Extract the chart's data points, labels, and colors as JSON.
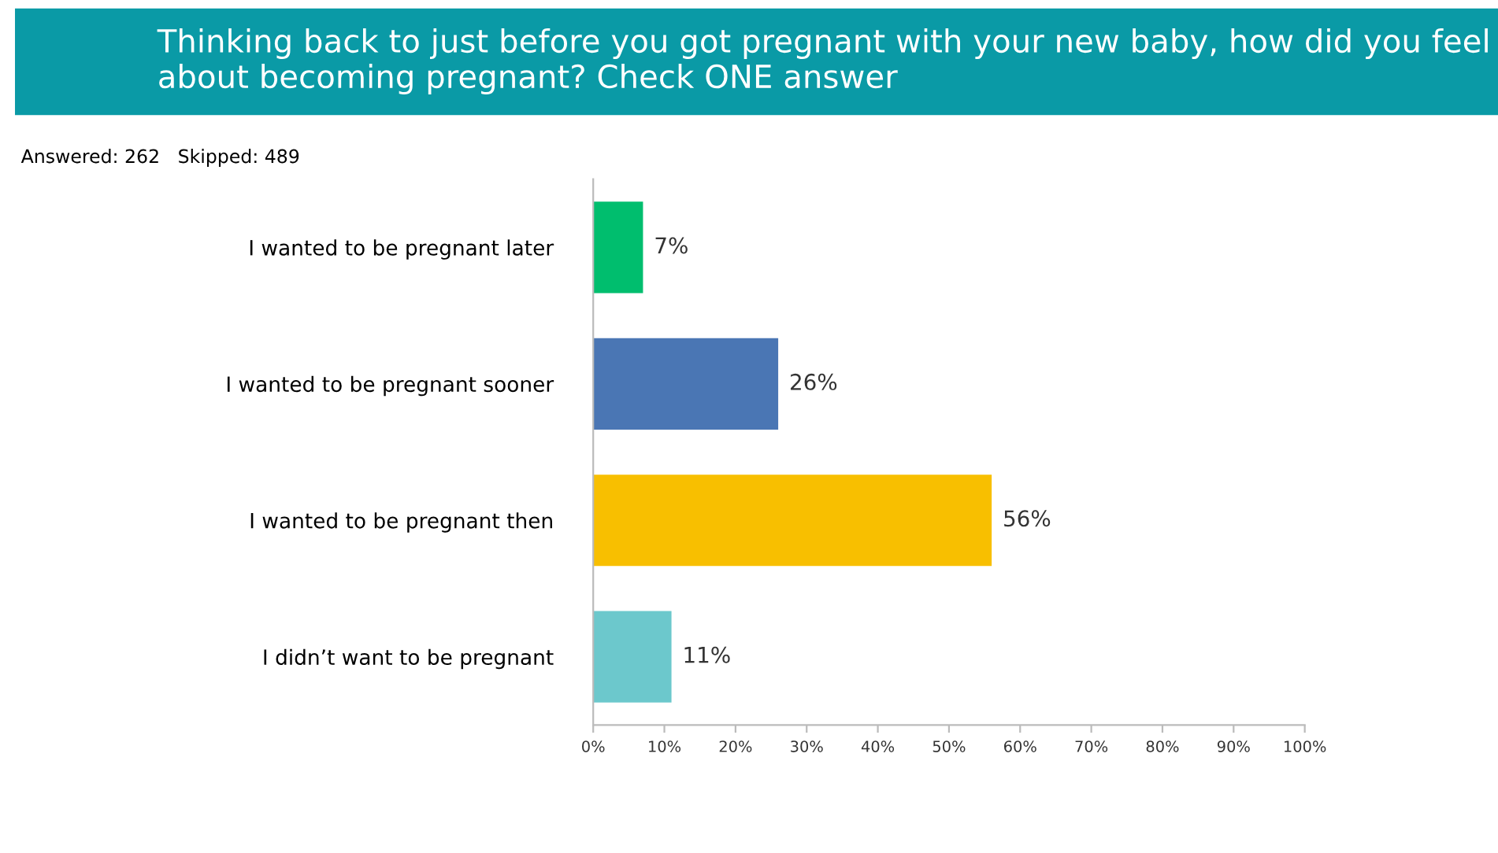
{
  "chart_data": {
    "type": "bar",
    "orientation": "horizontal",
    "title": "Thinking back to just before you got pregnant with your new baby, how did you feel about becoming pregnant? Check ONE answer",
    "annotations": [
      "Answered: 262   Skipped: 489"
    ],
    "categories": [
      "I wanted to be pregnant later",
      "I wanted to be pregnant sooner",
      "I wanted to be pregnant then",
      "I didn’t want to be pregnant"
    ],
    "values": [
      7,
      26,
      56,
      11
    ],
    "colors": [
      "#00be6e",
      "#4a76b4",
      "#f8bf00",
      "#6cc8cc"
    ],
    "value_labels": [
      "7%",
      "26%",
      "56%",
      "11%"
    ],
    "xlim": [
      0,
      100
    ],
    "xticks": [
      {
        "value": 0,
        "label": "0%"
      },
      {
        "value": 10,
        "label": "10%"
      },
      {
        "value": 20,
        "label": "20%"
      },
      {
        "value": 30,
        "label": "30%"
      },
      {
        "value": 40,
        "label": "40%"
      },
      {
        "value": 50,
        "label": "50%"
      },
      {
        "value": 60,
        "label": "60%"
      },
      {
        "value": 70,
        "label": "70%"
      },
      {
        "value": 80,
        "label": "80%"
      },
      {
        "value": 90,
        "label": "90%"
      },
      {
        "value": 100,
        "label": "100%"
      }
    ],
    "grid": false,
    "legend": false
  }
}
